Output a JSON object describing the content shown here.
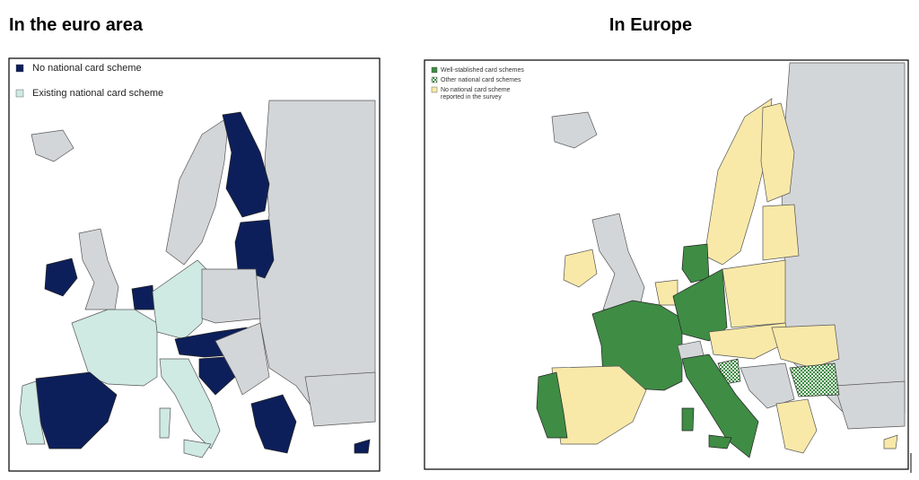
{
  "panels": [
    {
      "title": "In the euro area",
      "legend": [
        {
          "label": "No national card scheme",
          "color": "#0d1f5a"
        },
        {
          "label": "Existing national card scheme",
          "color": "#cfe9e3"
        }
      ]
    },
    {
      "title": "In Europe",
      "legend": [
        {
          "label": "Well-stablished card schemes",
          "color": "#3f8c45"
        },
        {
          "label": "Other national card schemes",
          "color": "#3f8c45",
          "pattern": "checker"
        },
        {
          "label": [
            "No national card scheme",
            "reported in the survey"
          ],
          "color": "#f9e9a8"
        }
      ]
    }
  ]
}
